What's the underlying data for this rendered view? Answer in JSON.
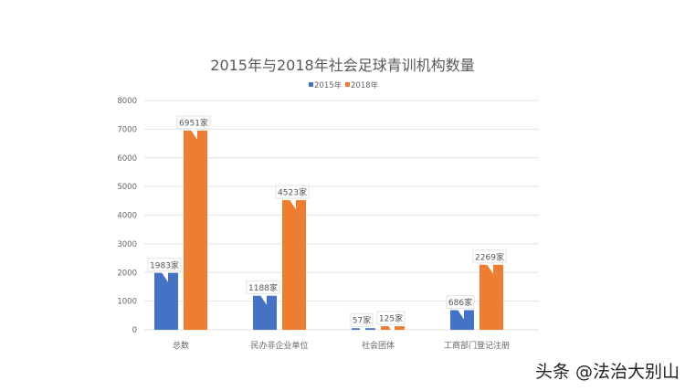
{
  "chart_data": {
    "type": "bar",
    "title": "2015年与2018年社会足球青训机构数量",
    "categories": [
      "总数",
      "民办非企业单位",
      "社会团体",
      "工商部门登记注册"
    ],
    "series": [
      {
        "name": "2015年",
        "values": [
          1983,
          1188,
          57,
          686
        ],
        "labels": [
          "1983家",
          "1188家",
          "57家",
          "686家"
        ],
        "color": "#4472c4"
      },
      {
        "name": "2018年",
        "values": [
          6951,
          4523,
          125,
          2269
        ],
        "labels": [
          "6951家",
          "4523家",
          "125家",
          "2269家"
        ],
        "color": "#ed7d31"
      }
    ],
    "yticks": [
      "0",
      "1000",
      "2000",
      "3000",
      "4000",
      "5000",
      "6000",
      "7000",
      "8000"
    ],
    "ylim": [
      0,
      8000
    ],
    "grid": true,
    "legend": "top-center"
  },
  "watermark": "头条 @法治大别山"
}
